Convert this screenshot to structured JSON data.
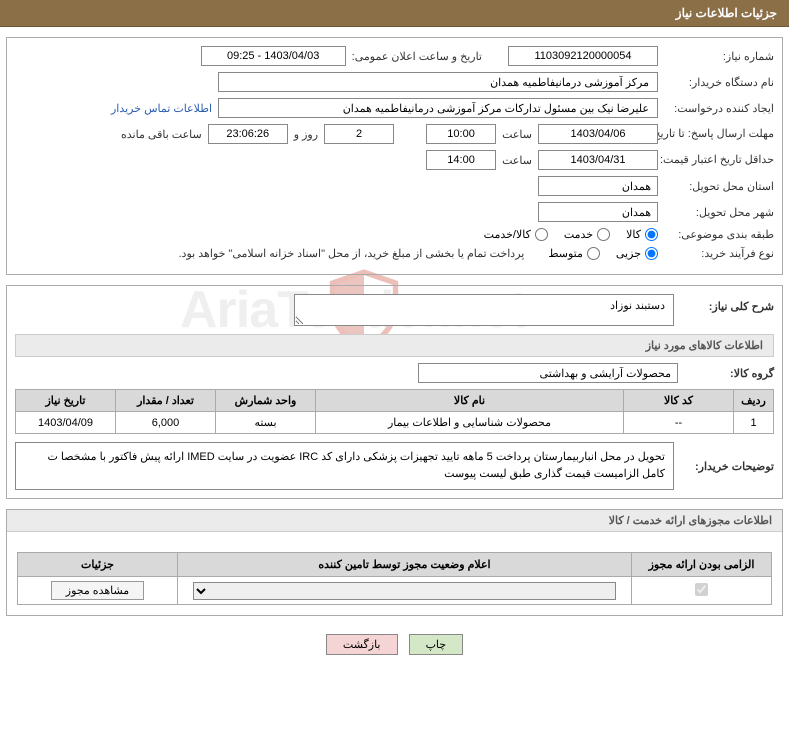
{
  "header": {
    "title": "جزئیات اطلاعات نیاز"
  },
  "form": {
    "need_no_label": "شماره نیاز:",
    "need_no": "1103092120000054",
    "announce_label": "تاریخ و ساعت اعلان عمومی:",
    "announce_value": "1403/04/03 - 09:25",
    "buyer_org_label": "نام دستگاه خریدار:",
    "buyer_org": "مرکز آموزشی درمانیفاطمیه همدان",
    "requester_label": "ایجاد کننده درخواست:",
    "requester": "علیرضا نیک بین مسئول تدارکات مرکز آموزشی درمانیفاطمیه همدان",
    "buyer_contact_link": "اطلاعات تماس خریدار",
    "reply_deadline_label": "مهلت ارسال پاسخ: تا تاریخ:",
    "reply_date": "1403/04/06",
    "time_label": "ساعت",
    "reply_time": "10:00",
    "remain_days": "2",
    "days_and": "روز و",
    "remain_time": "23:06:26",
    "remain_suffix": "ساعت باقی مانده",
    "price_valid_label": "حداقل تاریخ اعتبار قیمت: تا تاریخ:",
    "price_valid_date": "1403/04/31",
    "price_valid_time": "14:00",
    "province_label": "استان محل تحویل:",
    "province": "همدان",
    "city_label": "شهر محل تحویل:",
    "city": "همدان",
    "category_label": "طبقه بندی موضوعی:",
    "radio_kala": "کالا",
    "radio_khedmat": "خدمت",
    "radio_both": "کالا/خدمت",
    "process_label": "نوع فرآیند خرید:",
    "radio_partial": "جزیی",
    "radio_medium": "متوسط",
    "process_note": "پرداخت تمام یا بخشی از مبلغ خرید، از محل \"اسناد خزانه اسلامی\" خواهد بود."
  },
  "desc": {
    "main_label": "شرح کلی نیاز:",
    "main_text": "دستبند نوزاد",
    "items_header": "اطلاعات کالاهای مورد نیاز",
    "group_label": "گروه کالا:",
    "group_value": "محصولات آرایشی و بهداشتی"
  },
  "items_table": {
    "headers": [
      "ردیف",
      "کد کالا",
      "نام کالا",
      "واحد شمارش",
      "تعداد / مقدار",
      "تاریخ نیاز"
    ],
    "col_widths": [
      "40px",
      "110px",
      "auto",
      "100px",
      "100px",
      "100px"
    ],
    "rows": [
      [
        "1",
        "--",
        "محصولات شناسایی و اطلاعات بیمار",
        "بسته",
        "6,000",
        "1403/04/09"
      ]
    ]
  },
  "buyer_notes": {
    "label": "توضیحات خریدار:",
    "text": "تحویل در محل انباربیمارستان پرداخت 5 ماهه تایید تجهیزات پزشکی دارای کد IRC عضویت در سایت IMED ارائه پیش فاکتور با مشخصا ت کامل الزامیست قیمت گذاری طبق لیست پیوست"
  },
  "license": {
    "header": "اطلاعات مجوزهای ارائه خدمت / کالا",
    "headers": [
      "الزامی بودن ارائه مجوز",
      "اعلام وضعیت مجوز توسط تامین کننده",
      "جزئیات"
    ],
    "col_widths": [
      "140px",
      "auto",
      "160px"
    ],
    "view_btn": "مشاهده مجوز"
  },
  "footer": {
    "print": "چاپ",
    "back": "بازگشت"
  },
  "colors": {
    "header_bg": "#8a6f47",
    "th_bg": "#d9d9d9",
    "section_bg": "#ebebeb",
    "border": "#aaaaaa",
    "link": "#2a5db0",
    "btn_print": "#d4e8c8",
    "btn_back": "#f4d4d4"
  }
}
